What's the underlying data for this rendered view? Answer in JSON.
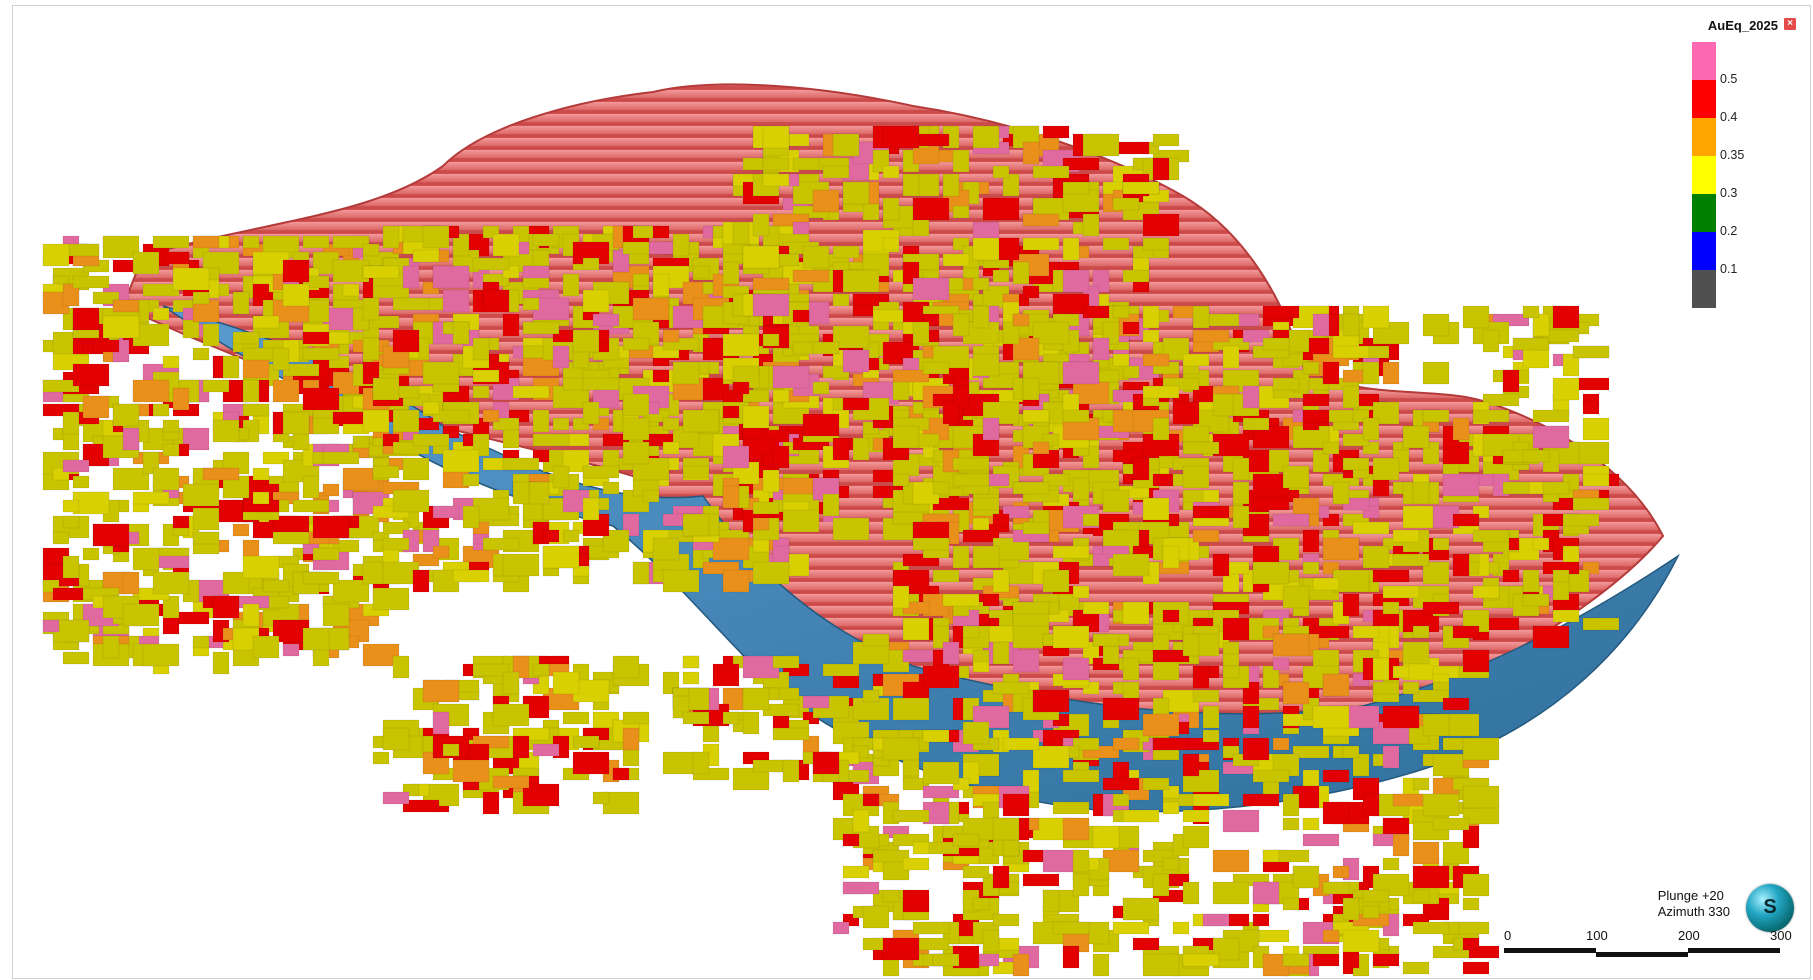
{
  "legend": {
    "title": "AuEq_2025",
    "close_icon": "close-icon",
    "classes": [
      {
        "color": "#ff69b4",
        "label": "0.5"
      },
      {
        "color": "#ff0000",
        "label": "0.4"
      },
      {
        "color": "#ffa500",
        "label": "0.35"
      },
      {
        "color": "#ffff00",
        "label": "0.3"
      },
      {
        "color": "#008000",
        "label": "0.2"
      },
      {
        "color": "#0000ff",
        "label": "0.1"
      },
      {
        "color": "#505050",
        "label": ""
      }
    ]
  },
  "orientation": {
    "plunge": "Plunge +20",
    "azimuth": "Azimuth 330",
    "compass_icon": "orientation-compass-icon"
  },
  "scale_bar": {
    "labels": [
      "0",
      "100",
      "200",
      "300"
    ]
  },
  "scene": {
    "pit_shell_color": "#e06060",
    "pit_shell_light": "#f08a8a",
    "orebody_surface_color": "#3a7fb0",
    "block_colors": [
      "#c9c400",
      "#d8d000",
      "#e30000",
      "#e8901a",
      "#e06aa0"
    ]
  }
}
